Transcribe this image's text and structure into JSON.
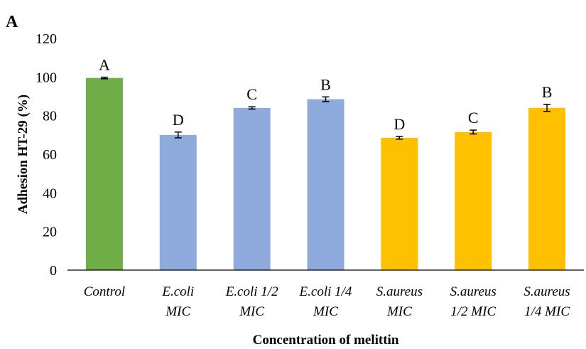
{
  "chart_data": {
    "type": "bar",
    "panel_label": "A",
    "title": "",
    "xlabel": "Concentration of melittin",
    "ylabel": "Adhesion HT-29 (%)",
    "ylim": [
      0,
      120
    ],
    "yticks": [
      "0",
      "20",
      "40",
      "60",
      "80",
      "100",
      "120"
    ],
    "grid": false,
    "legend": "none",
    "categories": [
      [
        "Control"
      ],
      [
        "E.coli",
        "MIC"
      ],
      [
        "E.coli   1/2",
        "MIC"
      ],
      [
        "E.coli   1/4",
        "MIC"
      ],
      [
        "S.aureus",
        "MIC"
      ],
      [
        "S.aureus",
        "1/2 MIC"
      ],
      [
        "S.aureus",
        "1/4 MIC"
      ]
    ],
    "values": [
      99.5,
      70,
      84,
      88.5,
      68.5,
      71.5,
      84
    ],
    "errors": [
      0.4,
      1.5,
      0.6,
      1.2,
      0.7,
      1.0,
      1.8
    ],
    "significance_letters": [
      "A",
      "D",
      "C",
      "B",
      "D",
      "C",
      "B"
    ],
    "colors": [
      "#70ad47",
      "#8faadc",
      "#8faadc",
      "#8faadc",
      "#ffc000",
      "#ffc000",
      "#ffc000"
    ]
  }
}
